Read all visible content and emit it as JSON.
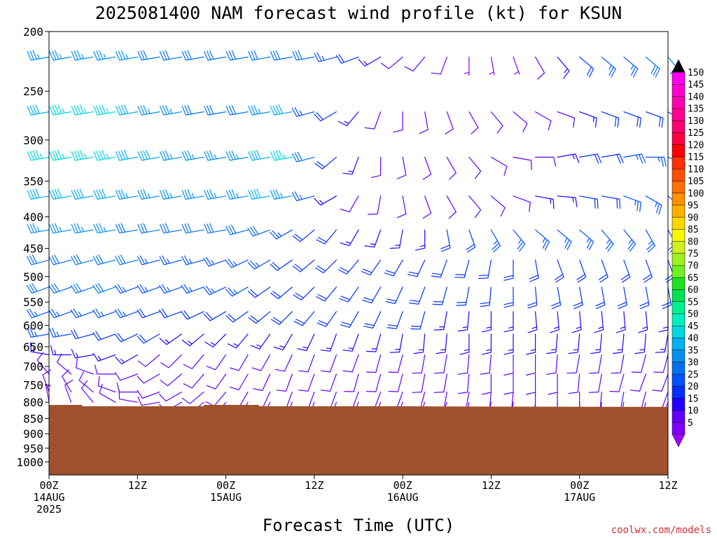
{
  "chart_data": {
    "type": "wind_barb_profile",
    "title": "2025081400 NAM forecast wind profile (kt) for KSUN",
    "xlabel": "Forecast Time (UTC)",
    "credit": "coolwx.com/models",
    "credit_color": "#cc3333",
    "terrain_color": "#a0522d",
    "y_axis": {
      "scale": "log-pressure",
      "range": [
        1050,
        200
      ],
      "ticks": [
        200,
        250,
        300,
        350,
        400,
        450,
        500,
        550,
        600,
        650,
        700,
        750,
        800,
        850,
        900,
        950,
        1000
      ]
    },
    "x_axis": {
      "range_hours": [
        0,
        84
      ],
      "ticks": [
        {
          "hour": 0,
          "lines": [
            "00Z",
            "14AUG",
            "2025"
          ]
        },
        {
          "hour": 12,
          "lines": [
            "12Z"
          ]
        },
        {
          "hour": 24,
          "lines": [
            "00Z",
            "15AUG"
          ]
        },
        {
          "hour": 36,
          "lines": [
            "12Z"
          ]
        },
        {
          "hour": 48,
          "lines": [
            "00Z",
            "16AUG"
          ]
        },
        {
          "hour": 60,
          "lines": [
            "12Z"
          ]
        },
        {
          "hour": 72,
          "lines": [
            "00Z",
            "17AUG"
          ]
        },
        {
          "hour": 84,
          "lines": [
            "12Z"
          ]
        }
      ]
    },
    "surface_pressure": [
      [
        0,
        808
      ],
      [
        4.5,
        808
      ],
      [
        4.5,
        812
      ],
      [
        21,
        812
      ],
      [
        21,
        808
      ],
      [
        28.5,
        808
      ],
      [
        28.5,
        812
      ],
      [
        48,
        812
      ],
      [
        55,
        813
      ],
      [
        84,
        814
      ]
    ],
    "levels": [
      220,
      270,
      320,
      370,
      420,
      470,
      520,
      570,
      620,
      670,
      720,
      770,
      800
    ],
    "hours": [
      0,
      3,
      6,
      9,
      12,
      15,
      18,
      21,
      24,
      27,
      30,
      33,
      36,
      39,
      42,
      45,
      48,
      51,
      54,
      57,
      60,
      63,
      66,
      69,
      72,
      75,
      78,
      81,
      84
    ],
    "direction_deg": [
      [
        260,
        260,
        260,
        260,
        260,
        260,
        260,
        260,
        260,
        260,
        260,
        260,
        260,
        255,
        250,
        240,
        230,
        220,
        200,
        180,
        170,
        160,
        150,
        140,
        130,
        130,
        130,
        130,
        140
      ],
      [
        260,
        260,
        260,
        260,
        260,
        260,
        260,
        260,
        260,
        260,
        260,
        260,
        255,
        240,
        220,
        200,
        180,
        170,
        160,
        150,
        140,
        130,
        120,
        110,
        110,
        110,
        110,
        110,
        120
      ],
      [
        260,
        260,
        260,
        260,
        260,
        260,
        260,
        260,
        260,
        260,
        260,
        260,
        255,
        230,
        200,
        180,
        170,
        160,
        150,
        140,
        120,
        100,
        90,
        80,
        80,
        80,
        80,
        90,
        110
      ],
      [
        260,
        260,
        260,
        260,
        260,
        260,
        260,
        260,
        260,
        260,
        260,
        260,
        255,
        240,
        210,
        190,
        170,
        160,
        150,
        140,
        130,
        110,
        100,
        95,
        100,
        100,
        110,
        120,
        130
      ],
      [
        260,
        260,
        260,
        260,
        260,
        260,
        260,
        260,
        260,
        255,
        250,
        240,
        230,
        220,
        210,
        200,
        190,
        180,
        170,
        160,
        150,
        140,
        130,
        130,
        130,
        140,
        140,
        150,
        150
      ],
      [
        255,
        255,
        255,
        255,
        255,
        255,
        255,
        255,
        250,
        245,
        240,
        235,
        230,
        225,
        220,
        215,
        210,
        205,
        200,
        195,
        190,
        180,
        170,
        160,
        160,
        160,
        160,
        160,
        160
      ],
      [
        250,
        250,
        250,
        250,
        250,
        250,
        250,
        250,
        245,
        240,
        235,
        230,
        225,
        220,
        215,
        210,
        205,
        200,
        195,
        190,
        185,
        180,
        175,
        170,
        170,
        170,
        170,
        170,
        170
      ],
      [
        250,
        250,
        250,
        250,
        250,
        250,
        250,
        245,
        240,
        235,
        230,
        225,
        220,
        215,
        210,
        205,
        200,
        195,
        190,
        185,
        180,
        180,
        175,
        175,
        175,
        175,
        175,
        175,
        180
      ],
      [
        260,
        260,
        255,
        250,
        245,
        240,
        235,
        230,
        225,
        220,
        215,
        210,
        205,
        200,
        200,
        195,
        190,
        185,
        185,
        180,
        180,
        180,
        180,
        185,
        185,
        185,
        185,
        185,
        190
      ],
      [
        280,
        270,
        260,
        250,
        240,
        230,
        225,
        220,
        215,
        210,
        210,
        205,
        200,
        200,
        200,
        195,
        195,
        190,
        190,
        185,
        185,
        180,
        180,
        185,
        190,
        190,
        190,
        195,
        195
      ],
      [
        320,
        310,
        290,
        270,
        250,
        240,
        230,
        220,
        215,
        210,
        205,
        200,
        200,
        200,
        195,
        195,
        195,
        190,
        190,
        185,
        180,
        180,
        180,
        180,
        185,
        190,
        195,
        200,
        200
      ],
      [
        340,
        330,
        310,
        290,
        270,
        250,
        240,
        230,
        220,
        210,
        205,
        200,
        200,
        200,
        200,
        200,
        200,
        195,
        190,
        190,
        185,
        185,
        180,
        180,
        180,
        185,
        190,
        195,
        200
      ],
      [
        350,
        340,
        320,
        300,
        280,
        260,
        240,
        230,
        220,
        210,
        205,
        200,
        200,
        200,
        200,
        200,
        200,
        200,
        200,
        190,
        190,
        185,
        185,
        180,
        180,
        185,
        190,
        195,
        200
      ]
    ],
    "speed_kt": [
      [
        35,
        35,
        35,
        35,
        35,
        30,
        30,
        30,
        30,
        30,
        30,
        30,
        30,
        25,
        20,
        15,
        10,
        10,
        10,
        5,
        5,
        5,
        10,
        15,
        20,
        25,
        25,
        30,
        30
      ],
      [
        40,
        45,
        45,
        45,
        40,
        35,
        35,
        30,
        30,
        30,
        35,
        40,
        25,
        20,
        15,
        10,
        10,
        10,
        10,
        10,
        10,
        10,
        10,
        10,
        15,
        20,
        20,
        20,
        20
      ],
      [
        45,
        45,
        45,
        45,
        40,
        40,
        35,
        35,
        35,
        35,
        40,
        45,
        30,
        20,
        15,
        10,
        10,
        10,
        10,
        10,
        10,
        10,
        10,
        15,
        20,
        20,
        25,
        25,
        25
      ],
      [
        40,
        40,
        40,
        40,
        35,
        35,
        35,
        35,
        35,
        35,
        40,
        35,
        25,
        15,
        10,
        10,
        10,
        10,
        10,
        10,
        10,
        10,
        15,
        15,
        20,
        20,
        25,
        25,
        25
      ],
      [
        35,
        35,
        35,
        35,
        30,
        30,
        30,
        30,
        30,
        30,
        30,
        25,
        20,
        20,
        15,
        15,
        15,
        15,
        20,
        20,
        25,
        25,
        25,
        25,
        25,
        25,
        25,
        25,
        25
      ],
      [
        30,
        30,
        30,
        30,
        30,
        25,
        25,
        25,
        25,
        25,
        25,
        20,
        20,
        20,
        20,
        20,
        20,
        20,
        20,
        20,
        20,
        20,
        20,
        20,
        20,
        20,
        20,
        20,
        20
      ],
      [
        30,
        30,
        30,
        30,
        25,
        25,
        25,
        25,
        25,
        25,
        20,
        20,
        20,
        20,
        20,
        20,
        20,
        20,
        20,
        20,
        20,
        20,
        20,
        20,
        20,
        20,
        20,
        20,
        20
      ],
      [
        25,
        25,
        25,
        25,
        25,
        20,
        20,
        20,
        20,
        20,
        20,
        20,
        20,
        20,
        20,
        20,
        20,
        20,
        15,
        15,
        15,
        15,
        15,
        15,
        15,
        15,
        15,
        15,
        15
      ],
      [
        25,
        25,
        20,
        20,
        20,
        20,
        15,
        15,
        15,
        15,
        15,
        15,
        15,
        15,
        15,
        15,
        15,
        15,
        15,
        15,
        15,
        15,
        15,
        15,
        15,
        15,
        15,
        15,
        15
      ],
      [
        15,
        15,
        15,
        15,
        15,
        10,
        10,
        10,
        10,
        10,
        10,
        10,
        10,
        10,
        10,
        10,
        10,
        10,
        10,
        10,
        10,
        10,
        10,
        10,
        10,
        10,
        10,
        10,
        10
      ],
      [
        10,
        10,
        10,
        10,
        10,
        10,
        10,
        10,
        10,
        10,
        10,
        10,
        10,
        10,
        10,
        10,
        10,
        10,
        10,
        10,
        10,
        10,
        10,
        10,
        10,
        10,
        10,
        10,
        10
      ],
      [
        10,
        10,
        10,
        10,
        10,
        10,
        10,
        10,
        10,
        10,
        10,
        10,
        10,
        10,
        10,
        10,
        10,
        10,
        10,
        10,
        10,
        10,
        10,
        10,
        10,
        10,
        10,
        10,
        10
      ],
      [
        5,
        10,
        10,
        10,
        10,
        10,
        10,
        10,
        10,
        10,
        10,
        10,
        10,
        10,
        10,
        10,
        10,
        10,
        10,
        10,
        10,
        10,
        10,
        10,
        10,
        10,
        10,
        10,
        10
      ]
    ],
    "colorbar": {
      "labels": [
        5,
        10,
        15,
        20,
        25,
        30,
        35,
        40,
        45,
        50,
        55,
        60,
        65,
        70,
        75,
        80,
        85,
        90,
        95,
        100,
        105,
        110,
        115,
        120,
        125,
        130,
        135,
        140,
        145,
        150
      ],
      "colors": [
        "#8000ff",
        "#6000ff",
        "#2000ff",
        "#0030ff",
        "#0050ff",
        "#0070f0",
        "#0090f0",
        "#00b0f0",
        "#00d8e0",
        "#00f0c0",
        "#00f090",
        "#00e050",
        "#20e020",
        "#70f020",
        "#a0f020",
        "#d0f020",
        "#f8f800",
        "#ffd800",
        "#ffb000",
        "#ff9000",
        "#ff7000",
        "#ff5000",
        "#ff3000",
        "#ff0000",
        "#ff0040",
        "#ff0070",
        "#ff0090",
        "#ff00b0",
        "#ff00d0",
        "#ff00f0"
      ],
      "top_arrow_color": "#000000",
      "bottom_arrow_color": "#a000ff"
    }
  }
}
